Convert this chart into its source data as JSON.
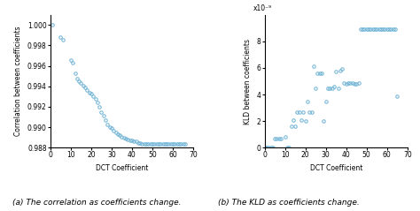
{
  "corr_x": [
    1,
    5,
    6,
    10,
    11,
    12,
    13,
    14,
    15,
    16,
    17,
    18,
    19,
    20,
    21,
    22,
    23,
    24,
    25,
    26,
    27,
    28,
    29,
    30,
    31,
    32,
    33,
    34,
    35,
    36,
    37,
    38,
    39,
    40,
    41,
    42,
    43,
    44,
    45,
    46,
    47,
    48,
    49,
    50,
    51,
    52,
    53,
    54,
    55,
    56,
    57,
    58,
    59,
    60,
    61,
    62,
    63,
    64,
    65,
    66
  ],
  "corr_y": [
    1.0,
    0.9988,
    0.9986,
    0.9966,
    0.9963,
    0.9953,
    0.9948,
    0.9945,
    0.9943,
    0.9941,
    0.9939,
    0.9936,
    0.9934,
    0.9933,
    0.993,
    0.9928,
    0.9924,
    0.992,
    0.9915,
    0.9911,
    0.9907,
    0.9903,
    0.99,
    0.9899,
    0.9897,
    0.9895,
    0.9893,
    0.9892,
    0.9891,
    0.989,
    0.9889,
    0.9888,
    0.9887,
    0.9887,
    0.9886,
    0.9886,
    0.9885,
    0.9885,
    0.9884,
    0.9884,
    0.9884,
    0.9884,
    0.9884,
    0.9884,
    0.9884,
    0.9884,
    0.9884,
    0.9884,
    0.9884,
    0.9884,
    0.9884,
    0.9884,
    0.9884,
    0.9884,
    0.9884,
    0.9884,
    0.9884,
    0.9884,
    0.9884,
    0.9884
  ],
  "kld_x": [
    0,
    1,
    2,
    3,
    4,
    5,
    6,
    7,
    8,
    10,
    11,
    12,
    13,
    14,
    15,
    16,
    17,
    18,
    19,
    20,
    21,
    22,
    23,
    24,
    25,
    26,
    27,
    28,
    29,
    30,
    31,
    32,
    33,
    34,
    35,
    36,
    37,
    38,
    39,
    40,
    41,
    42,
    43,
    44,
    45,
    46,
    47,
    48,
    49,
    50,
    51,
    52,
    53,
    54,
    55,
    56,
    57,
    58,
    59,
    60,
    61,
    62,
    63,
    64,
    65
  ],
  "kld_y": [
    0.0,
    0.0,
    0.0,
    0.0,
    0.0,
    7e-10,
    7e-10,
    7e-10,
    7e-10,
    8e-10,
    0.0,
    0.0,
    1.6e-09,
    2.1e-09,
    1.6e-09,
    2.7e-09,
    2.7e-09,
    2.1e-09,
    2.7e-09,
    2e-09,
    3.5e-09,
    2.7e-09,
    2.7e-09,
    6.1e-09,
    4.5e-09,
    5.6e-09,
    5.6e-09,
    5.6e-09,
    2e-09,
    3.5e-09,
    4.5e-09,
    4.5e-09,
    4.5e-09,
    4.6e-09,
    5.7e-09,
    4.5e-09,
    5.8e-09,
    5.9e-09,
    4.9e-09,
    4.8e-09,
    4.9e-09,
    4.9e-09,
    4.9e-09,
    4.8e-09,
    4.8e-09,
    4.9e-09,
    8.9e-09,
    8.9e-09,
    8.9e-09,
    8.9e-09,
    8.9e-09,
    8.9e-09,
    8.9e-09,
    8.9e-09,
    8.9e-09,
    8.9e-09,
    8.9e-09,
    8.9e-09,
    8.9e-09,
    8.9e-09,
    8.9e-09,
    8.9e-09,
    8.9e-09,
    8.9e-09,
    3.9e-09
  ],
  "marker_color": "#6ab0d4",
  "marker_size": 2.5,
  "marker_edge_width": 0.7,
  "corr_ylabel": "Correlation between coefficients",
  "kld_ylabel": "KLD between coefficients",
  "xlabel": "DCT Coefficient",
  "corr_ylim": [
    0.988,
    1.001
  ],
  "corr_yticks": [
    0.988,
    0.99,
    0.992,
    0.994,
    0.996,
    0.998,
    1.0
  ],
  "kld_ylim": [
    0,
    1e-08
  ],
  "kld_yticks": [
    0,
    2e-09,
    4e-09,
    6e-09,
    8e-09
  ],
  "kld_ytick_labels": [
    "0",
    "2",
    "4",
    "6",
    "8"
  ],
  "kld_scale_label": "x10⁻⁹",
  "xlim": [
    0,
    70
  ],
  "xticks": [
    0,
    10,
    20,
    30,
    40,
    50,
    60,
    70
  ],
  "caption_a": "(a) The correlation as coefficients change.",
  "caption_b": "(b) The KLD as coefficients change.",
  "label_fontsize": 5.5,
  "tick_fontsize": 5.5,
  "caption_fontsize": 6.5,
  "scale_fontsize": 5.5
}
